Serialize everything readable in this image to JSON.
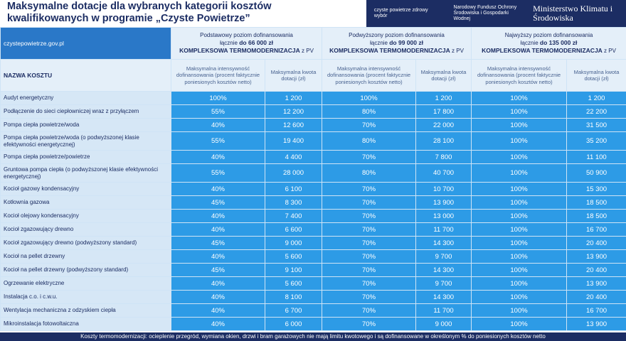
{
  "header": {
    "title": "Maksymalne dotacje dla wybranych kategorii kosztów kwalifikowanych w programie „Czyste Powietrze”",
    "logos": [
      "czyste powietrze zdrowy wybór",
      "Narodowy Fundusz Ochrony Środowiska i Gospodarki Wodnej",
      "Ministerstwo Klimatu i Środowiska"
    ]
  },
  "table": {
    "website": "czystepowietrze.gov.pl",
    "name_header": "NAZWA KOSZTU",
    "tiers": [
      {
        "level": "Podstawowy poziom dofinansowania",
        "total_prefix": "łącznie",
        "total": "do 66 000 zł",
        "scope": "KOMPLEKSOWA TERMOMODERNIZACJA",
        "scope_suffix": "z PV",
        "intensity_header": "Maksymalna intensywność dofinansowania (procent faktycznie poniesionych kosztów netto)",
        "amount_header": "Maksymalna kwota dotacji (zł)"
      },
      {
        "level": "Podwyższony poziom dofinansowania",
        "total_prefix": "łącznie",
        "total": "do 99 000 zł",
        "scope": "KOMPLEKSOWA TERMOMODERNIZACJA",
        "scope_suffix": "z PV",
        "intensity_header": "Maksymalna intensywność dofinansowania (procent faktycznie poniesionych kosztów netto)",
        "amount_header": "Maksymalna kwota dotacji (zł)"
      },
      {
        "level": "Najwyższy poziom dofinansowania",
        "total_prefix": "łącznie",
        "total": "do 135 000 zł",
        "scope": "KOMPLEKSOWA TERMOMODERNIZACJA",
        "scope_suffix": "z PV",
        "intensity_header": "Maksymalna intensywność dofinansowania (procent faktycznie poniesionych kosztów netto)",
        "amount_header": "Maksymalna kwota dotacji (zł)"
      }
    ],
    "rows": [
      [
        "Audyt energetyczny",
        "100%",
        "1 200",
        "100%",
        "1 200",
        "100%",
        "1 200"
      ],
      [
        "Podłączenie do sieci ciepłowniczej wraz z przyłączem",
        "55%",
        "12 200",
        "80%",
        "17 800",
        "100%",
        "22 200"
      ],
      [
        "Pompa ciepła powietrze/woda",
        "40%",
        "12 600",
        "70%",
        "22 000",
        "100%",
        "31 500"
      ],
      [
        "Pompa ciepła powietrze/woda (o podwyższonej klasie efektywności energetycznej)",
        "55%",
        "19 400",
        "80%",
        "28 100",
        "100%",
        "35 200"
      ],
      [
        "Pompa ciepła powietrze/powietrze",
        "40%",
        "4 400",
        "70%",
        "7 800",
        "100%",
        "11 100"
      ],
      [
        "Gruntowa pompa ciepła (o podwyższonej klasie efektywności energetycznej)",
        "55%",
        "28 000",
        "80%",
        "40 700",
        "100%",
        "50 900"
      ],
      [
        "Kocioł gazowy kondensacyjny",
        "40%",
        "6 100",
        "70%",
        "10 700",
        "100%",
        "15 300"
      ],
      [
        "Kotłownia gazowa",
        "45%",
        "8 300",
        "70%",
        "13 900",
        "100%",
        "18 500"
      ],
      [
        "Kocioł olejowy kondensacyjny",
        "40%",
        "7 400",
        "70%",
        "13 000",
        "100%",
        "18 500"
      ],
      [
        "Kocioł zgazowujący drewno",
        "40%",
        "6 600",
        "70%",
        "11 700",
        "100%",
        "16 700"
      ],
      [
        "Kocioł zgazowujący drewno (podwyższony standard)",
        "45%",
        "9 000",
        "70%",
        "14 300",
        "100%",
        "20 400"
      ],
      [
        "Kocioł na pellet drzewny",
        "40%",
        "5 600",
        "70%",
        "9 700",
        "100%",
        "13 900"
      ],
      [
        "Kocioł na pellet drzewny (podwyższony standard)",
        "45%",
        "9 100",
        "70%",
        "14 300",
        "100%",
        "20 400"
      ],
      [
        "Ogrzewanie elektryczne",
        "40%",
        "5 600",
        "70%",
        "9 700",
        "100%",
        "13 900"
      ],
      [
        "Instalacja c.o. i c.w.u.",
        "40%",
        "8 100",
        "70%",
        "14 300",
        "100%",
        "20 400"
      ],
      [
        "Wentylacja mechaniczna z odzyskiem ciepła",
        "40%",
        "6 700",
        "70%",
        "11 700",
        "100%",
        "16 700"
      ],
      [
        "Mikroinstalacja fotowoltaiczna",
        "40%",
        "6 000",
        "70%",
        "9 000",
        "100%",
        "13 900"
      ]
    ]
  },
  "footer": "Koszty termomodernizacji: ocieplenie przegród, wymiana okien, drzwi i bram garażowych nie mają limitu kwotowego i są dofinansowane w określonym % do poniesionych kosztów netto"
}
